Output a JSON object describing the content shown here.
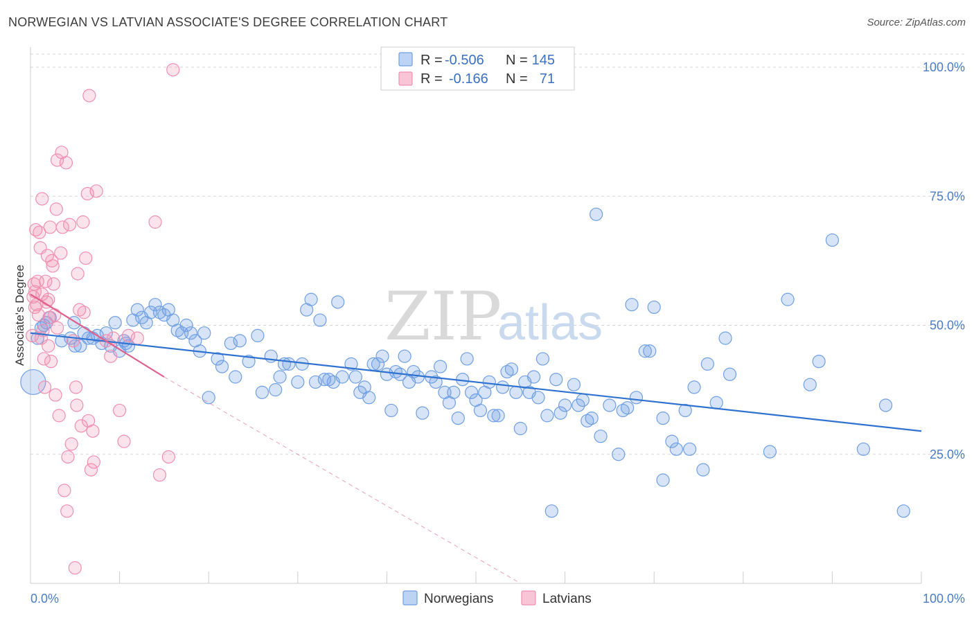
{
  "title": "NORWEGIAN VS LATVIAN ASSOCIATE'S DEGREE CORRELATION CHART",
  "source": "Source: ZipAtlas.com",
  "watermark": {
    "zip": "ZIP",
    "atlas": "atlas"
  },
  "colors": {
    "norwegians": "#6f9fe3",
    "norwegians_line": "#2f72cf",
    "latvians": "#f08fb0",
    "latvians_line": "#e0608d",
    "grid": "#d6d6d6",
    "tick_text": "#4a7cc4"
  },
  "legend": {
    "row1": {
      "r_label": "R =",
      "r_value": "-0.506",
      "n_label": "N =",
      "n_value": "145"
    },
    "row2": {
      "r_label": "R =",
      "r_value": "-0.166",
      "n_label": "N =",
      "n_value": "71"
    }
  },
  "bottom_legend": {
    "norwegians": "Norwegians",
    "latvians": "Latvians"
  },
  "chart_data": {
    "type": "scatter",
    "title": "NORWEGIAN VS LATVIAN ASSOCIATE'S DEGREE CORRELATION CHART",
    "xlabel": "",
    "ylabel": "Associate's Degree",
    "xlim": [
      0,
      100
    ],
    "ylim": [
      0,
      100
    ],
    "x_tick_labels": [
      "0.0%",
      "100.0%"
    ],
    "y_ticks": [
      {
        "value": 25,
        "label": "25.0%"
      },
      {
        "value": 50,
        "label": "50.0%"
      },
      {
        "value": 75,
        "label": "75.0%"
      },
      {
        "value": 100,
        "label": "100.0%"
      }
    ],
    "series": [
      {
        "name": "Norwegians",
        "r": -0.506,
        "n": 145,
        "trend": {
          "x0": 0,
          "y0": 48.5,
          "x1": 100,
          "y1": 29.5
        },
        "points": [
          [
            0.3,
            39.0
          ],
          [
            0.8,
            47.5
          ],
          [
            1.2,
            49.5
          ],
          [
            1.5,
            50.0
          ],
          [
            1.8,
            50.5
          ],
          [
            2.2,
            51.5
          ],
          [
            3.5,
            47.0
          ],
          [
            4.5,
            47.5
          ],
          [
            4.9,
            50.5
          ],
          [
            5.0,
            46.0
          ],
          [
            5.6,
            46.0
          ],
          [
            6.0,
            48.5
          ],
          [
            6.5,
            47.5
          ],
          [
            7.0,
            47.5
          ],
          [
            7.5,
            48.0
          ],
          [
            8.0,
            46.5
          ],
          [
            8.5,
            48.5
          ],
          [
            9.0,
            46.0
          ],
          [
            9.5,
            50.5
          ],
          [
            10.0,
            45.0
          ],
          [
            10.5,
            47.0
          ],
          [
            10.7,
            46.5
          ],
          [
            11.0,
            46.0
          ],
          [
            11.5,
            51.0
          ],
          [
            12.0,
            53.0
          ],
          [
            12.5,
            51.5
          ],
          [
            13.0,
            50.5
          ],
          [
            13.5,
            52.5
          ],
          [
            14.0,
            54.0
          ],
          [
            14.5,
            52.5
          ],
          [
            15.0,
            52.0
          ],
          [
            15.5,
            53.0
          ],
          [
            16.0,
            51.0
          ],
          [
            16.5,
            49.0
          ],
          [
            17.0,
            48.5
          ],
          [
            17.5,
            50.0
          ],
          [
            18.0,
            48.5
          ],
          [
            18.5,
            47.0
          ],
          [
            19.0,
            45.0
          ],
          [
            19.5,
            48.5
          ],
          [
            20.0,
            36.0
          ],
          [
            21.0,
            43.5
          ],
          [
            21.5,
            42.0
          ],
          [
            22.5,
            46.5
          ],
          [
            23.0,
            40.0
          ],
          [
            23.5,
            47.0
          ],
          [
            24.5,
            43.0
          ],
          [
            25.5,
            48.0
          ],
          [
            26.0,
            37.0
          ],
          [
            27.0,
            44.0
          ],
          [
            27.5,
            37.5
          ],
          [
            28.0,
            40.0
          ],
          [
            28.5,
            42.5
          ],
          [
            29.0,
            42.5
          ],
          [
            30.0,
            39.0
          ],
          [
            30.5,
            42.5
          ],
          [
            31.0,
            53.0
          ],
          [
            31.5,
            55.0
          ],
          [
            32.0,
            39.0
          ],
          [
            32.5,
            51.0
          ],
          [
            33.0,
            39.5
          ],
          [
            33.5,
            39.5
          ],
          [
            34.0,
            39.0
          ],
          [
            34.5,
            54.5
          ],
          [
            35.0,
            40.0
          ],
          [
            36.0,
            42.5
          ],
          [
            36.5,
            40.0
          ],
          [
            37.0,
            37.0
          ],
          [
            37.5,
            38.0
          ],
          [
            38.0,
            36.0
          ],
          [
            38.5,
            42.5
          ],
          [
            39.0,
            42.5
          ],
          [
            39.5,
            44.0
          ],
          [
            40.0,
            40.5
          ],
          [
            40.5,
            33.5
          ],
          [
            41.0,
            41.0
          ],
          [
            41.5,
            40.5
          ],
          [
            42.0,
            44.0
          ],
          [
            42.5,
            39.0
          ],
          [
            43.0,
            41.0
          ],
          [
            43.5,
            40.0
          ],
          [
            44.0,
            33.0
          ],
          [
            45.0,
            40.0
          ],
          [
            45.5,
            39.0
          ],
          [
            46.0,
            42.0
          ],
          [
            46.5,
            37.0
          ],
          [
            47.0,
            35.0
          ],
          [
            47.5,
            37.0
          ],
          [
            48.0,
            32.0
          ],
          [
            48.5,
            39.5
          ],
          [
            49.0,
            43.5
          ],
          [
            49.5,
            37.0
          ],
          [
            50.0,
            35.5
          ],
          [
            50.5,
            33.5
          ],
          [
            51.0,
            37.0
          ],
          [
            51.5,
            39.0
          ],
          [
            52.0,
            32.5
          ],
          [
            52.5,
            32.5
          ],
          [
            53.0,
            38.0
          ],
          [
            53.5,
            41.0
          ],
          [
            54.0,
            41.5
          ],
          [
            54.5,
            37.0
          ],
          [
            55.0,
            30.0
          ],
          [
            55.5,
            39.0
          ],
          [
            56.0,
            37.0
          ],
          [
            56.5,
            40.0
          ],
          [
            57.0,
            36.0
          ],
          [
            57.5,
            43.5
          ],
          [
            58.0,
            32.5
          ],
          [
            58.5,
            14.0
          ],
          [
            59.0,
            39.5
          ],
          [
            59.5,
            33.0
          ],
          [
            60.0,
            34.5
          ],
          [
            61.0,
            38.5
          ],
          [
            61.5,
            34.5
          ],
          [
            62.0,
            35.5
          ],
          [
            62.5,
            31.5
          ],
          [
            63.0,
            32.0
          ],
          [
            63.5,
            71.5
          ],
          [
            64.0,
            28.5
          ],
          [
            65.0,
            34.5
          ],
          [
            66.0,
            25.0
          ],
          [
            66.5,
            33.5
          ],
          [
            67.0,
            34.0
          ],
          [
            67.5,
            54.0
          ],
          [
            68.0,
            36.0
          ],
          [
            69.0,
            45.0
          ],
          [
            69.5,
            45.0
          ],
          [
            70.0,
            53.5
          ],
          [
            71.0,
            20.0
          ],
          [
            71.0,
            32.0
          ],
          [
            72.0,
            27.5
          ],
          [
            72.5,
            26.0
          ],
          [
            73.5,
            33.5
          ],
          [
            74.0,
            26.0
          ],
          [
            74.5,
            38.0
          ],
          [
            75.5,
            22.0
          ],
          [
            76.0,
            42.5
          ],
          [
            77.0,
            35.0
          ],
          [
            78.0,
            47.5
          ],
          [
            78.5,
            40.5
          ],
          [
            83.0,
            25.5
          ],
          [
            85.0,
            55.0
          ],
          [
            87.5,
            38.5
          ],
          [
            88.5,
            43.0
          ],
          [
            90.0,
            66.5
          ],
          [
            93.5,
            26.0
          ],
          [
            96.0,
            34.5
          ],
          [
            98.0,
            14.0
          ]
        ]
      },
      {
        "name": "Latvians",
        "r": -0.166,
        "n": 71,
        "trend": {
          "x0": 0,
          "y0": 56.0,
          "x1": 15,
          "y1": 40.0
        },
        "trend_extension": {
          "x0": 15,
          "y0": 40.0,
          "x1": 55,
          "y1": 0.0
        },
        "points": [
          [
            0.2,
            48.0
          ],
          [
            0.3,
            55.5
          ],
          [
            0.4,
            58.0
          ],
          [
            0.5,
            56.5
          ],
          [
            0.6,
            68.5
          ],
          [
            0.7,
            54.0
          ],
          [
            0.8,
            58.5
          ],
          [
            0.9,
            52.0
          ],
          [
            1.0,
            68.0
          ],
          [
            1.1,
            65.0
          ],
          [
            1.2,
            47.5
          ],
          [
            1.3,
            74.5
          ],
          [
            1.4,
            49.0
          ],
          [
            1.5,
            43.5
          ],
          [
            1.6,
            38.0
          ],
          [
            1.7,
            58.5
          ],
          [
            1.8,
            54.5
          ],
          [
            1.9,
            63.5
          ],
          [
            2.0,
            46.0
          ],
          [
            2.1,
            51.5
          ],
          [
            2.2,
            69.0
          ],
          [
            2.3,
            43.0
          ],
          [
            2.4,
            62.5
          ],
          [
            2.5,
            61.5
          ],
          [
            2.6,
            58.0
          ],
          [
            2.7,
            52.0
          ],
          [
            2.8,
            36.5
          ],
          [
            2.9,
            72.5
          ],
          [
            3.0,
            82.0
          ],
          [
            3.2,
            32.5
          ],
          [
            3.4,
            64.0
          ],
          [
            3.5,
            83.5
          ],
          [
            3.6,
            69.0
          ],
          [
            3.8,
            18.0
          ],
          [
            4.0,
            81.5
          ],
          [
            4.1,
            14.0
          ],
          [
            4.2,
            24.5
          ],
          [
            4.4,
            69.5
          ],
          [
            4.6,
            27.0
          ],
          [
            4.8,
            47.0
          ],
          [
            5.0,
            3.0
          ],
          [
            5.1,
            38.0
          ],
          [
            5.2,
            34.5
          ],
          [
            5.3,
            60.0
          ],
          [
            5.5,
            53.0
          ],
          [
            5.7,
            30.5
          ],
          [
            5.9,
            70.0
          ],
          [
            6.0,
            52.5
          ],
          [
            6.2,
            63.0
          ],
          [
            6.4,
            75.5
          ],
          [
            6.5,
            31.5
          ],
          [
            6.6,
            94.5
          ],
          [
            6.8,
            22.0
          ],
          [
            7.0,
            29.5
          ],
          [
            7.1,
            23.5
          ],
          [
            7.4,
            76.0
          ],
          [
            8.5,
            47.0
          ],
          [
            9.0,
            44.0
          ],
          [
            9.3,
            47.5
          ],
          [
            10.0,
            33.5
          ],
          [
            10.5,
            27.5
          ],
          [
            11.0,
            48.0
          ],
          [
            12.0,
            47.5
          ],
          [
            14.0,
            70.0
          ],
          [
            14.5,
            21.0
          ],
          [
            15.5,
            24.5
          ],
          [
            16.0,
            99.5
          ],
          [
            1.3,
            56.0
          ],
          [
            2.0,
            55.0
          ],
          [
            0.5,
            53.5
          ],
          [
            3.0,
            49.5
          ]
        ]
      }
    ]
  }
}
